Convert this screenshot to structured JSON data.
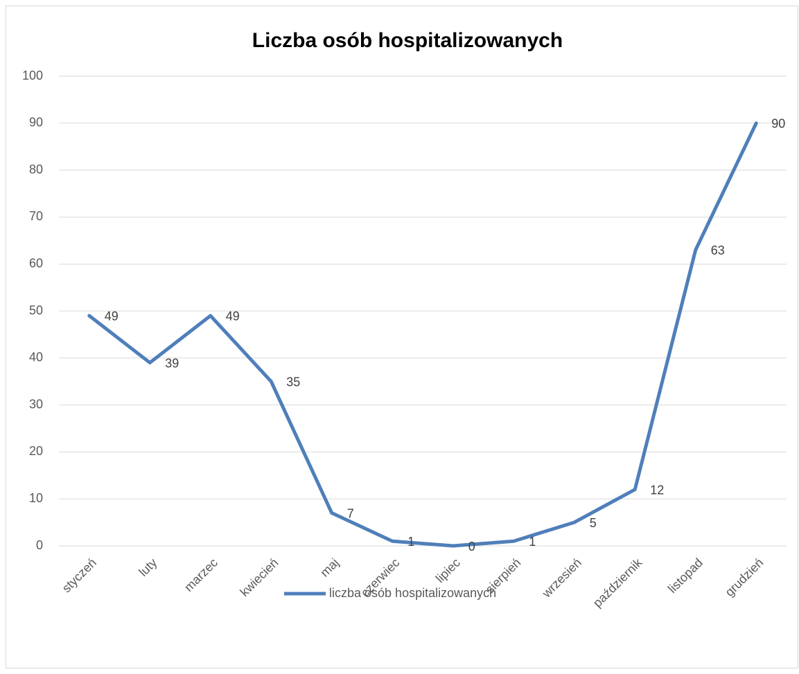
{
  "chart_data": {
    "type": "line",
    "title": "Liczba osób hospitalizowanych",
    "categories": [
      "styczeń",
      "luty",
      "marzec",
      "kwiecień",
      "maj",
      "czerwiec",
      "lipiec",
      "sierpień",
      "wrzesień",
      "październik",
      "listopad",
      "grudzień"
    ],
    "series": [
      {
        "name": "liczba osób hospitalizowanych",
        "color": "#4f7fba",
        "values": [
          49,
          39,
          49,
          35,
          7,
          1,
          0,
          1,
          5,
          12,
          63,
          90
        ]
      }
    ],
    "ylim": [
      0,
      100
    ],
    "yticks": [
      0,
      10,
      20,
      30,
      40,
      50,
      60,
      70,
      80,
      90,
      100
    ],
    "grid": true,
    "legend": "bottom"
  }
}
